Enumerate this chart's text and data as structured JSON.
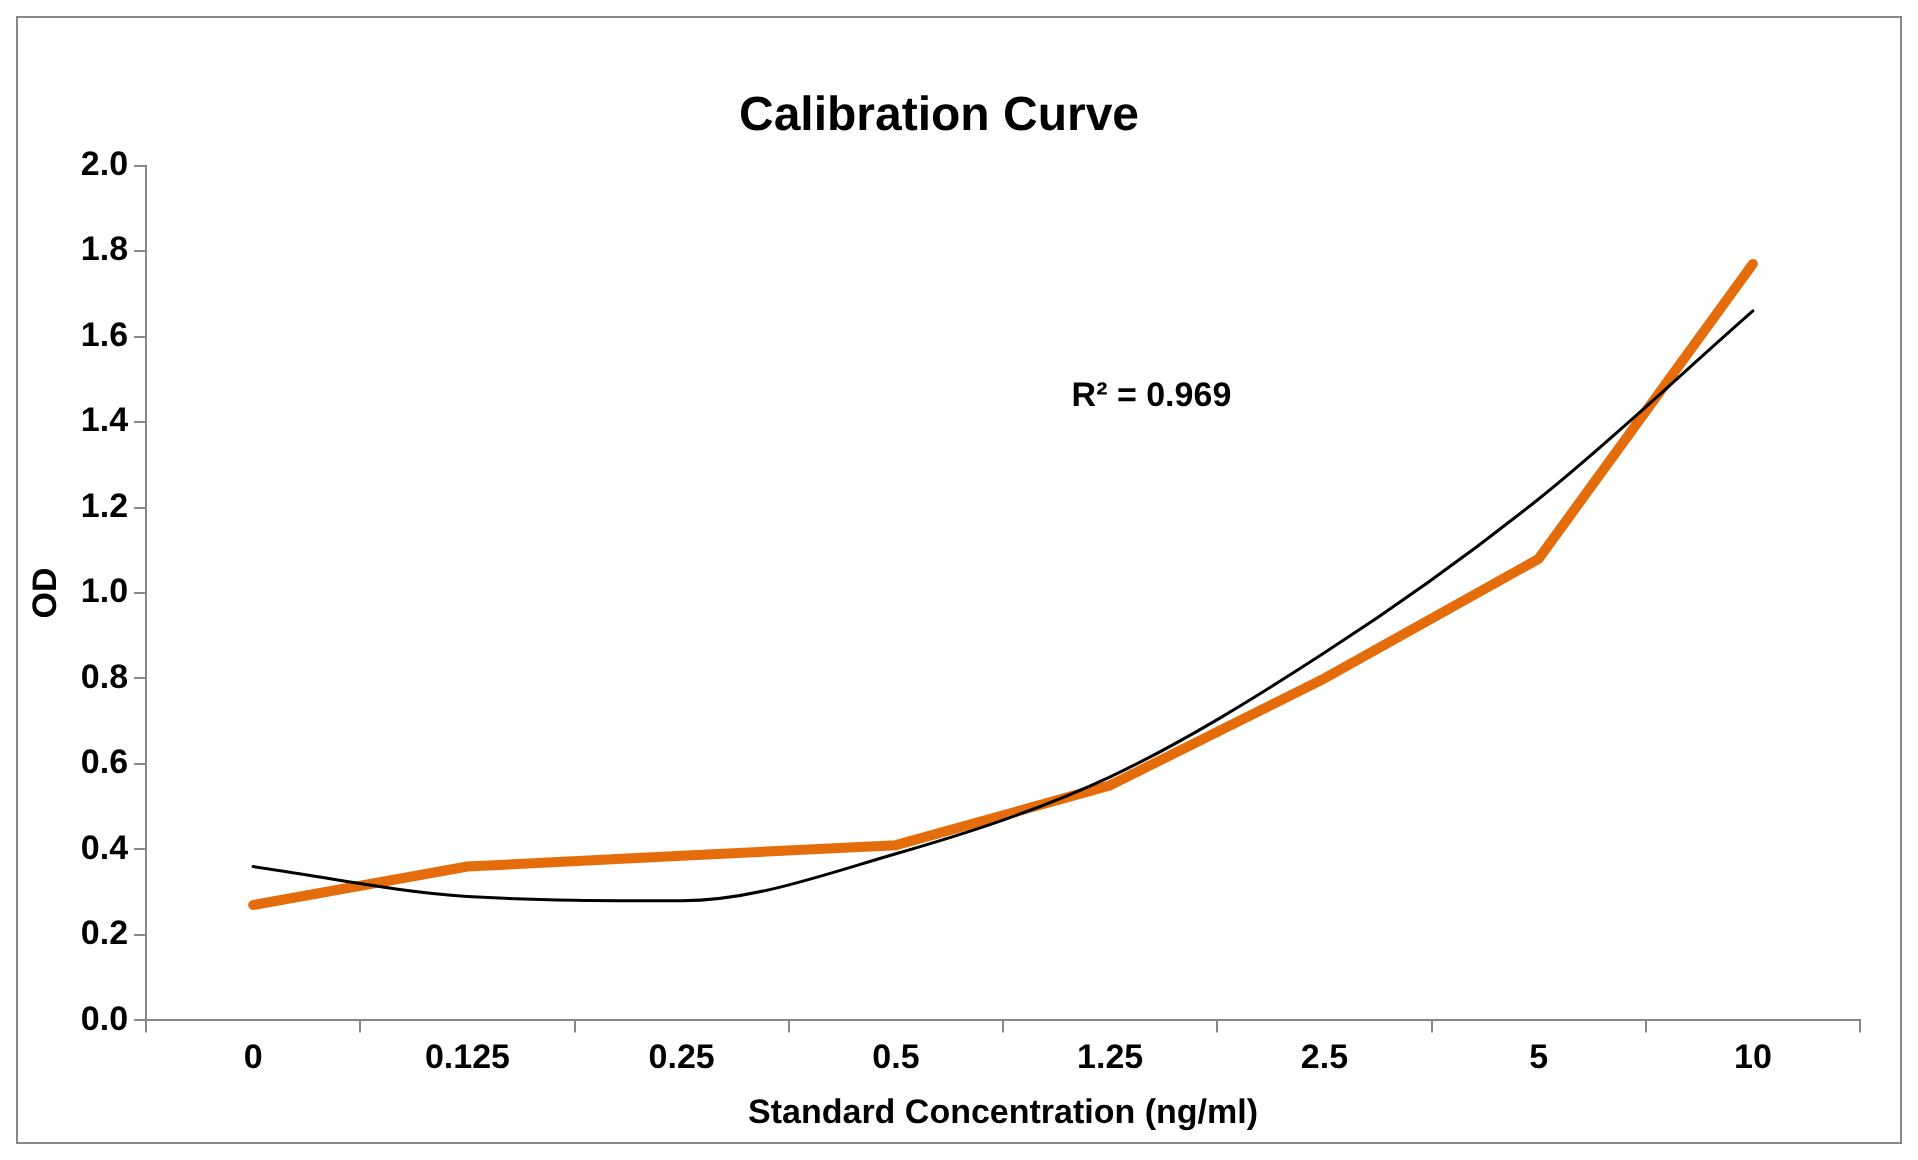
{
  "chart_data": {
    "type": "line",
    "title": "Calibration Curve",
    "xlabel": "Standard Concentration (ng/ml)",
    "ylabel": "OD",
    "categories": [
      "0",
      "0.125",
      "0.25",
      "0.5",
      "1.25",
      "2.5",
      "5",
      "10"
    ],
    "series": [
      {
        "color": "#e46c0a",
        "values": [
          0.27,
          0.36,
          0.385,
          0.41,
          0.55,
          0.8,
          1.08,
          1.77
        ]
      },
      {
        "type": "line",
        "color": "#000000",
        "values": [
          0.36,
          0.29,
          0.28,
          0.39,
          0.57,
          0.86,
          1.22,
          1.66
        ]
      }
    ],
    "ylim": [
      0,
      2
    ],
    "yticks": [
      {
        "value": 0,
        "label": "0.0"
      },
      {
        "value": 0.2,
        "label": "0.2"
      },
      {
        "value": 0.4,
        "label": "0.4"
      },
      {
        "value": 0.6,
        "label": "0.6"
      },
      {
        "value": 0.8,
        "label": "0.8"
      },
      {
        "value": 1,
        "label": "1.0"
      },
      {
        "value": 1.2,
        "label": "1.2"
      },
      {
        "value": 1.4,
        "label": "1.4"
      },
      {
        "value": 1.6,
        "label": "1.6"
      },
      {
        "value": 1.8,
        "label": "1.8"
      },
      {
        "value": 2,
        "label": "2.0"
      }
    ],
    "annotations": [
      "R² = 0.969"
    ],
    "grid": false,
    "legend": false,
    "marker": "none"
  }
}
